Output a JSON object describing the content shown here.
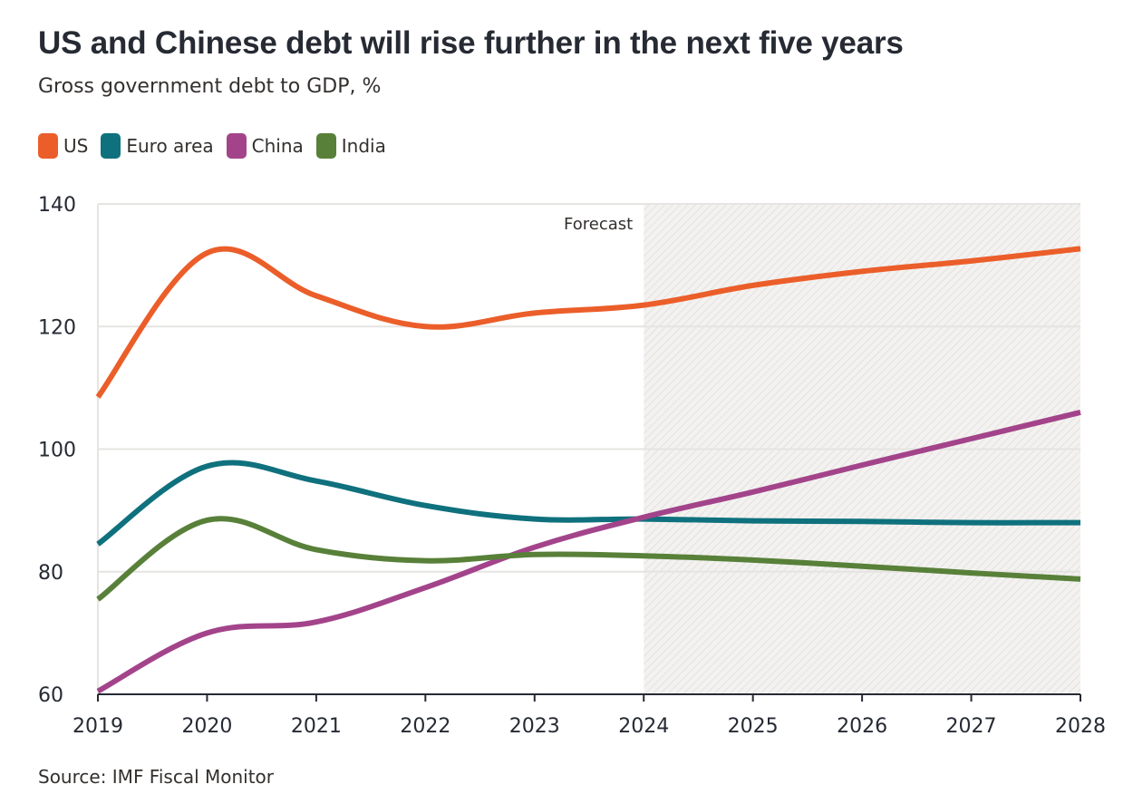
{
  "title": "US and Chinese debt will rise further in the next five years",
  "subtitle": "Gross government debt to GDP, %",
  "source": "Source: IMF Fiscal Monitor",
  "legend": [
    {
      "label": "US",
      "color": "#eb5e2a"
    },
    {
      "label": "Euro area",
      "color": "#0f717d"
    },
    {
      "label": "China",
      "color": "#a3448b"
    },
    {
      "label": "India",
      "color": "#588039"
    }
  ],
  "chart_data": {
    "type": "line",
    "title": "US and Chinese debt will rise further in the next five years",
    "subtitle": "Gross government debt to GDP, %",
    "xlabel": "",
    "ylabel": "",
    "x": [
      2019,
      2020,
      2021,
      2022,
      2023,
      2024,
      2025,
      2026,
      2027,
      2028
    ],
    "x_tick_labels": [
      "2019",
      "2020",
      "2021",
      "2022",
      "2023",
      "2024",
      "2025",
      "2026",
      "2027",
      "2028"
    ],
    "y_ticks": [
      60,
      80,
      100,
      120,
      140
    ],
    "y_tick_labels": [
      "60",
      "80",
      "100",
      "120",
      "140"
    ],
    "ylim": [
      60,
      140
    ],
    "xlim": [
      2019,
      2028
    ],
    "grid": "horizontal",
    "legend_position": "top-left",
    "forecast": {
      "label": "Forecast",
      "from": 2024,
      "to": 2028
    },
    "series": [
      {
        "name": "US",
        "color": "#eb5e2a",
        "values": [
          108.5,
          132.0,
          125.0,
          120.0,
          122.2,
          123.5,
          126.7,
          129.0,
          130.7,
          132.7
        ]
      },
      {
        "name": "Euro area",
        "color": "#0f717d",
        "values": [
          84.5,
          97.2,
          94.8,
          90.8,
          88.6,
          88.6,
          88.3,
          88.2,
          88.0,
          88.0
        ]
      },
      {
        "name": "China",
        "color": "#a3448b",
        "values": [
          60.5,
          70.0,
          71.8,
          77.4,
          84.0,
          88.9,
          93.0,
          97.4,
          101.7,
          106.0
        ]
      },
      {
        "name": "India",
        "color": "#588039",
        "values": [
          75.5,
          88.4,
          83.6,
          81.8,
          82.8,
          82.6,
          81.9,
          80.9,
          79.8,
          78.8
        ]
      }
    ],
    "source": "Source: IMF Fiscal Monitor"
  }
}
